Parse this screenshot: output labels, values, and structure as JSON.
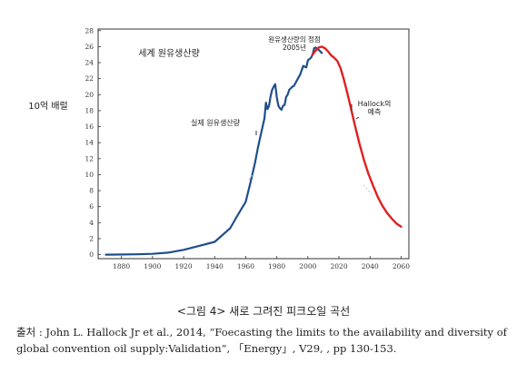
{
  "chart_data": {
    "type": "line",
    "title": "세계 원유생산량",
    "ylabel": "10억 배럴",
    "xlabel": "",
    "xlim": [
      1865,
      2065
    ],
    "ylim": [
      -0.5,
      28.2
    ],
    "x_ticks": [
      1880,
      1900,
      1920,
      1940,
      1960,
      1980,
      2000,
      2020,
      2040,
      2060
    ],
    "y_ticks": [
      0,
      2,
      4,
      6,
      8,
      10,
      12,
      14,
      16,
      18,
      20,
      22,
      24,
      26,
      28
    ],
    "grid": false,
    "series": [
      {
        "name": "실제 원유생산량",
        "color": "#1f4e8c",
        "points": [
          [
            1870,
            0
          ],
          [
            1890,
            0.05
          ],
          [
            1900,
            0.1
          ],
          [
            1910,
            0.25
          ],
          [
            1920,
            0.6
          ],
          [
            1930,
            1.1
          ],
          [
            1940,
            1.6
          ],
          [
            1950,
            3.3
          ],
          [
            1955,
            5
          ],
          [
            1960,
            6.6
          ],
          [
            1963,
            9
          ],
          [
            1966,
            11.5
          ],
          [
            1968,
            13.5
          ],
          [
            1970,
            15.3
          ],
          [
            1972,
            17
          ],
          [
            1973,
            19
          ],
          [
            1974,
            18.2
          ],
          [
            1975,
            18.6
          ],
          [
            1976,
            19.8
          ],
          [
            1977,
            20.6
          ],
          [
            1978,
            21
          ],
          [
            1979,
            21.3
          ],
          [
            1980,
            19.7
          ],
          [
            1981,
            18.6
          ],
          [
            1982,
            18.3
          ],
          [
            1983,
            18.1
          ],
          [
            1984,
            18.6
          ],
          [
            1985,
            18.7
          ],
          [
            1986,
            19.7
          ],
          [
            1987,
            20
          ],
          [
            1988,
            20.6
          ],
          [
            1990,
            21
          ],
          [
            1991,
            21.1
          ],
          [
            1993,
            21.8
          ],
          [
            1995,
            22.5
          ],
          [
            1997,
            23.6
          ],
          [
            1999,
            23.4
          ],
          [
            2000,
            24.3
          ],
          [
            2002,
            24.6
          ],
          [
            2003,
            25
          ],
          [
            2004,
            25.8
          ],
          [
            2005,
            25.9
          ],
          [
            2006,
            25.7
          ],
          [
            2007,
            25.6
          ],
          [
            2008,
            25.4
          ],
          [
            2009,
            25.2
          ]
        ]
      },
      {
        "name": "Hallock의 예측",
        "color": "#e02020",
        "points": [
          [
            2003,
            25.0
          ],
          [
            2005,
            25.5
          ],
          [
            2007,
            25.9
          ],
          [
            2009,
            26.0
          ],
          [
            2011,
            25.8
          ],
          [
            2013,
            25.4
          ],
          [
            2015,
            24.9
          ],
          [
            2017,
            24.6
          ],
          [
            2019,
            24.2
          ],
          [
            2021,
            23.3
          ],
          [
            2023,
            22.0
          ],
          [
            2025,
            20.5
          ],
          [
            2027,
            18.9
          ],
          [
            2030,
            16.4
          ],
          [
            2033,
            14.0
          ],
          [
            2036,
            11.9
          ],
          [
            2039,
            10.1
          ],
          [
            2042,
            8.6
          ],
          [
            2045,
            7.2
          ],
          [
            2048,
            6.1
          ],
          [
            2051,
            5.2
          ],
          [
            2054,
            4.5
          ],
          [
            2057,
            3.9
          ],
          [
            2060,
            3.5
          ]
        ]
      }
    ],
    "annotations": {
      "peak": "원유생산량의 정점",
      "peak_year": "2005년",
      "actual": "실제 원유생산량",
      "forecast_line1": "Hallock의",
      "forecast_line2": "예측"
    }
  },
  "caption": "<그림 4> 새로 그려진 피크오일 곡선",
  "source_label": "출처",
  "source_text": " : John L. Hallock Jr et al., 2014, “Foecasting the limits to the availability and diversity of global convention oil supply:Validation”, 「Energy」, V29, , pp 130-153."
}
